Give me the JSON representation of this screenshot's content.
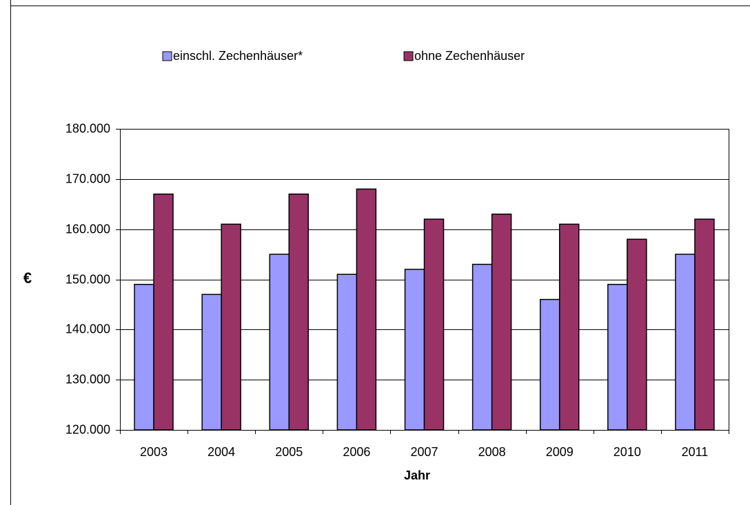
{
  "chart_data": {
    "type": "bar",
    "x_label": "Jahr",
    "y_label": "€",
    "categories": [
      "2003",
      "2004",
      "2005",
      "2006",
      "2007",
      "2008",
      "2009",
      "2010",
      "2011"
    ],
    "series": [
      {
        "name": "einschl. Zechenhäuser*",
        "color": "#9999ff",
        "values": [
          149000,
          147000,
          155000,
          151000,
          152000,
          153000,
          146000,
          149000,
          155000
        ]
      },
      {
        "name": "ohne Zechenhäuser",
        "color": "#993366",
        "values": [
          167000,
          161000,
          167000,
          168000,
          162000,
          163000,
          161000,
          158000,
          162000
        ]
      }
    ],
    "ylim": [
      120000,
      180000
    ],
    "yticks": [
      {
        "value": 120000,
        "label": "120.000"
      },
      {
        "value": 130000,
        "label": "130.000"
      },
      {
        "value": 140000,
        "label": "140.000"
      },
      {
        "value": 150000,
        "label": "150.000"
      },
      {
        "value": 160000,
        "label": "160.000"
      },
      {
        "value": 170000,
        "label": "170.000"
      },
      {
        "value": 180000,
        "label": "180.000"
      }
    ],
    "grid": true
  }
}
